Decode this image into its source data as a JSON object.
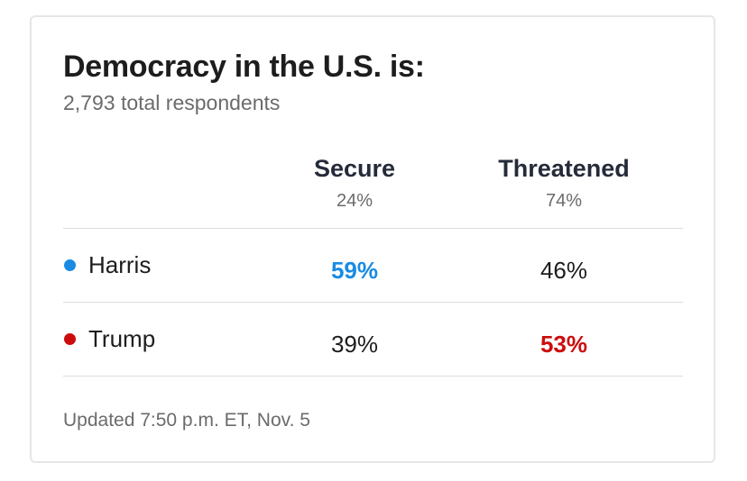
{
  "title": "Democracy in the U.S. is:",
  "subtitle": "2,793 total respondents",
  "footer": "Updated 7:50 p.m. ET, Nov. 5",
  "colors": {
    "harris": "#1a8be3",
    "trump": "#cc0c0c",
    "text": "#1d1d1d",
    "muted": "#6b6b6b",
    "rule": "#dcdcdc"
  },
  "chart_data": {
    "type": "table",
    "title": "Democracy in the U.S. is:",
    "subtitle": "2,793 total respondents",
    "columns": [
      {
        "label": "Secure",
        "share": "24%"
      },
      {
        "label": "Threatened",
        "share": "74%"
      }
    ],
    "rows": [
      {
        "label": "Harris",
        "color": "#1a8be3",
        "values": [
          "59%",
          "46%"
        ],
        "highlight": 0
      },
      {
        "label": "Trump",
        "color": "#cc0c0c",
        "values": [
          "39%",
          "53%"
        ],
        "highlight": 1
      }
    ]
  }
}
